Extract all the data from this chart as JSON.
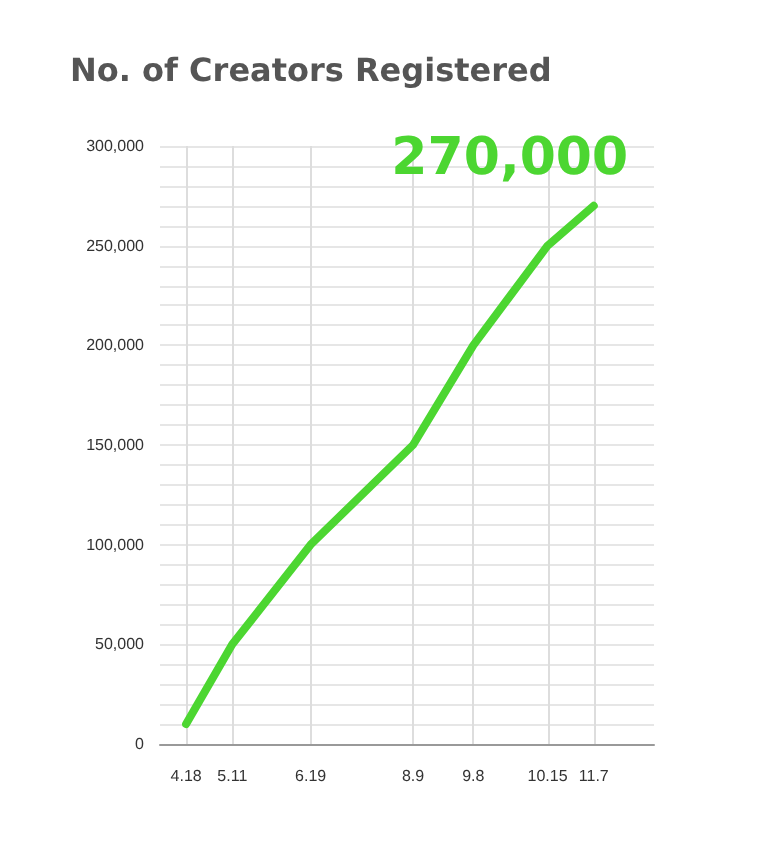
{
  "chart_data": {
    "type": "line",
    "title": "No. of Creators Registered",
    "x": [
      "--04-18",
      "--05-11",
      "--06-19",
      "--08-09",
      "--09-08",
      "--10-15",
      "--11-07"
    ],
    "series": [
      {
        "color": "#4cd631",
        "values": [
          10000,
          50000,
          100000,
          150000,
          200000,
          250000,
          270000
        ]
      }
    ],
    "xlim": [
      "--04-05",
      "--12-07"
    ],
    "xticks": [
      {
        "value": "--04-18",
        "label": "4.18"
      },
      {
        "value": "--05-11",
        "label": "5.11"
      },
      {
        "value": "--06-19",
        "label": "6.19"
      },
      {
        "value": "--08-09",
        "label": "8.9"
      },
      {
        "value": "--09-08",
        "label": "9.8"
      },
      {
        "value": "--10-15",
        "label": "10.15"
      },
      {
        "value": "--11-07",
        "label": "11.7"
      }
    ],
    "ylim": [
      0,
      300000
    ],
    "yticks": [
      {
        "value": 0,
        "label": "0"
      },
      {
        "value": 10000,
        "label": null
      },
      {
        "value": 20000,
        "label": null
      },
      {
        "value": 30000,
        "label": null
      },
      {
        "value": 40000,
        "label": null
      },
      {
        "value": 50000,
        "label": "50,000"
      },
      {
        "value": 60000,
        "label": null
      },
      {
        "value": 70000,
        "label": null
      },
      {
        "value": 80000,
        "label": null
      },
      {
        "value": 90000,
        "label": null
      },
      {
        "value": 100000,
        "label": "100,000"
      },
      {
        "value": 110000,
        "label": null
      },
      {
        "value": 120000,
        "label": null
      },
      {
        "value": 130000,
        "label": null
      },
      {
        "value": 140000,
        "label": null
      },
      {
        "value": 150000,
        "label": "150,000"
      },
      {
        "value": 160000,
        "label": null
      },
      {
        "value": 170000,
        "label": null
      },
      {
        "value": 180000,
        "label": null
      },
      {
        "value": 190000,
        "label": null
      },
      {
        "value": 200000,
        "label": "200,000"
      },
      {
        "value": 210000,
        "label": null
      },
      {
        "value": 220000,
        "label": null
      },
      {
        "value": 230000,
        "label": null
      },
      {
        "value": 240000,
        "label": null
      },
      {
        "value": 250000,
        "label": "250,000"
      },
      {
        "value": 260000,
        "label": null
      },
      {
        "value": 270000,
        "label": null
      },
      {
        "value": 280000,
        "label": null
      },
      {
        "value": 290000,
        "label": null
      },
      {
        "value": 300000,
        "label": "300,000"
      }
    ],
    "annotations": [
      {
        "text": "270,000",
        "x": "--11-07",
        "y": 270000
      }
    ],
    "grid": true,
    "marker": "none",
    "line_style": "solid"
  }
}
